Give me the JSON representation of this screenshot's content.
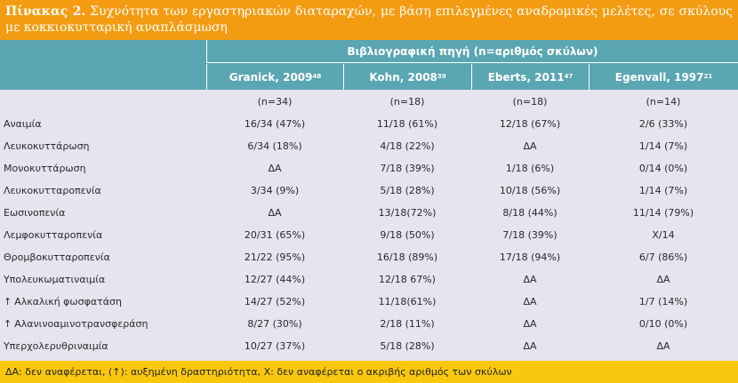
{
  "title": {
    "lead": "Πίνακας 2.",
    "text": "Συχνότητα των εργαστηριακών διαταραχών, με βάση επιλεγμένες αναδρομικές μελέτες, σε σκύλους με κοκκιοκυτταρική αναπλάσμωση"
  },
  "header": {
    "group_label": "Βιβλιογραφική πηγή (n=αριθμός σκύλων)",
    "columns": [
      {
        "name": "Granick, 2009",
        "ref": "48"
      },
      {
        "name": "Kohn, 2008",
        "ref": "39"
      },
      {
        "name": "Eberts, 2011",
        "ref": "47"
      },
      {
        "name": "Egenvall, 1997",
        "ref": "21"
      }
    ]
  },
  "n_row": [
    "(n=34)",
    "(n=18)",
    "(n=18)",
    "(n=14)"
  ],
  "rows": [
    {
      "marker": "",
      "label": "Αναιμία",
      "values": [
        "16/34 (47%)",
        "11/18 (61%)",
        "12/18 (67%)",
        "2/6 (33%)"
      ]
    },
    {
      "marker": "",
      "label": "Λευκοκυττάρωση",
      "values": [
        "6/34 (18%)",
        "4/18 (22%)",
        "ΔΑ",
        "1/14 (7%)"
      ]
    },
    {
      "marker": "",
      "label": "Μονοκυττάρωση",
      "values": [
        "ΔΑ",
        "7/18 (39%)",
        "1/18 (6%)",
        "0/14 (0%)"
      ]
    },
    {
      "marker": "",
      "label": "Λευκοκυτταροπενία",
      "values": [
        "3/34 (9%)",
        "5/18 (28%)",
        "10/18 (56%)",
        "1/14 (7%)"
      ]
    },
    {
      "marker": "",
      "label": "Εωσινοπενία",
      "values": [
        "ΔΑ",
        "13/18(72%)",
        "8/18 (44%)",
        "11/14 (79%)"
      ]
    },
    {
      "marker": "",
      "label": "Λεμφοκυτταροπενία",
      "values": [
        "20/31 (65%)",
        "9/18 (50%)",
        "7/18 (39%)",
        "Χ/14"
      ]
    },
    {
      "marker": "",
      "label": "Θρομβοκυτταροπενία",
      "values": [
        "21/22 (95%)",
        "16/18 (89%)",
        "17/18 (94%)",
        "6/7 (86%)"
      ]
    },
    {
      "marker": "",
      "label": "Υπολευκωματιναιμία",
      "values": [
        "12/27 (44%)",
        "12/18 67%)",
        "ΔΑ",
        "ΔΑ"
      ]
    },
    {
      "marker": "↑",
      "label": "Αλκαλική φωσφατάση",
      "values": [
        "14/27 (52%)",
        "11/18(61%)",
        "ΔΑ",
        "1/7 (14%)"
      ]
    },
    {
      "marker": "↑",
      "label": "Αλανινοαμινοτρανσφεράση",
      "values": [
        "8/27 (30%)",
        "2/18 (11%)",
        "ΔΑ",
        "0/10 (0%)"
      ]
    },
    {
      "marker": "",
      "label": "Υπερχολερυθριναιμία",
      "values": [
        "10/27 (37%)",
        "5/18 (28%)",
        "ΔΑ",
        "ΔΑ"
      ]
    }
  ],
  "footer": "ΔΑ: δεν αναφέρεται, (↑): αυξημένη δραστηριότητα, Χ: δεν αναφέρεται ο ακριβής αριθμός των σκύλων",
  "colors": {
    "title_bg": "#f39c12",
    "header_bg": "#5aa6b2",
    "body_bg": "#e7e3ef",
    "footer_bg": "#f9c80e"
  }
}
